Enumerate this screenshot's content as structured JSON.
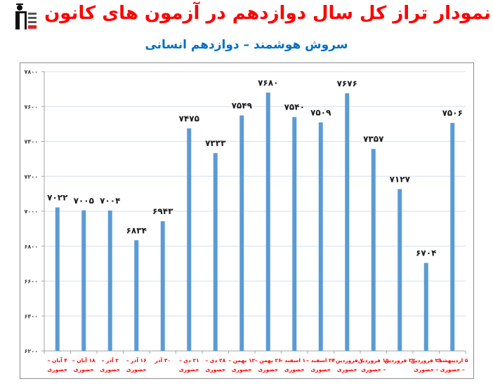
{
  "header": {
    "title": "نمودار تراز کل سال دوازدهم در آزمون های کانون",
    "subtitle": "سروش هوشمند – دوازدهم انسانی",
    "logo": "kanoon-graduate-logo-icon"
  },
  "colors": {
    "title": "#ff0000",
    "subtitle": "#0070c0",
    "bar": "#5b9bd5",
    "gridline": "#dbe5f1",
    "xlabel": "#ff0000"
  },
  "chart_data": {
    "type": "bar",
    "title": "نمودار تراز کل سال دوازدهم در آزمون های کانون",
    "subtitle": "سروش هوشمند – دوازدهم انسانی",
    "xlabel": "",
    "ylabel": "",
    "ylim": [
      6200,
      7800
    ],
    "ytick_step": 200,
    "yticks": [
      "۶۲۰۰",
      "۶۴۰۰",
      "۶۶۰۰",
      "۶۸۰۰",
      "۷۰۰۰",
      "۷۲۰۰",
      "۷۴۰۰",
      "۷۶۰۰",
      "۷۸۰۰"
    ],
    "ytick_values": [
      6200,
      6400,
      6600,
      6800,
      7000,
      7200,
      7400,
      7600,
      7800
    ],
    "grid": true,
    "legend": "none",
    "categories": [
      [
        "۴ آبان –",
        "حضوری"
      ],
      [
        "۱۸ آبان –",
        "حضوری"
      ],
      [
        "۲ آذر –",
        "حضوری"
      ],
      [
        "۱۶ آذر –",
        "حضوری"
      ],
      [
        "۳۰ آذر",
        ""
      ],
      [
        "۲۱ دی –",
        "حضوری"
      ],
      [
        "۲۸ دی –",
        "حضوری"
      ],
      [
        "۱۲ بهمن –",
        "حضوری"
      ],
      [
        "۲۶ بهمن –",
        "حضوری"
      ],
      [
        "۱۰ اسفند –",
        "حضوری"
      ],
      [
        "۲۴ اسفند –",
        "حضوری"
      ],
      [
        "۷ فروردین –",
        "حضوری"
      ],
      [
        "۱۵ فروردین",
        "– حضوری"
      ],
      [
        "۲۲ فروردین",
        ""
      ],
      [
        "۲۹ فروردین",
        "– حضوری"
      ],
      [
        "۵ اردیبهشت",
        "– حضوری"
      ]
    ],
    "values": [
      7022,
      7005,
      7004,
      6834,
      6943,
      7475,
      7333,
      7549,
      7680,
      7540,
      7509,
      7676,
      7357,
      7127,
      6704,
      7506
    ],
    "value_labels": [
      "۷۰۲۲",
      "۷۰۰۵",
      "۷۰۰۴",
      "۶۸۳۴",
      "۶۹۴۳",
      "۷۴۷۵",
      "۷۳۳۳",
      "۷۵۴۹",
      "۷۶۸۰",
      "۷۵۴۰",
      "۷۵۰۹",
      "۷۶۷۶",
      "۷۳۵۷",
      "۷۱۲۷",
      "۶۷۰۴",
      "۷۵۰۶"
    ]
  }
}
